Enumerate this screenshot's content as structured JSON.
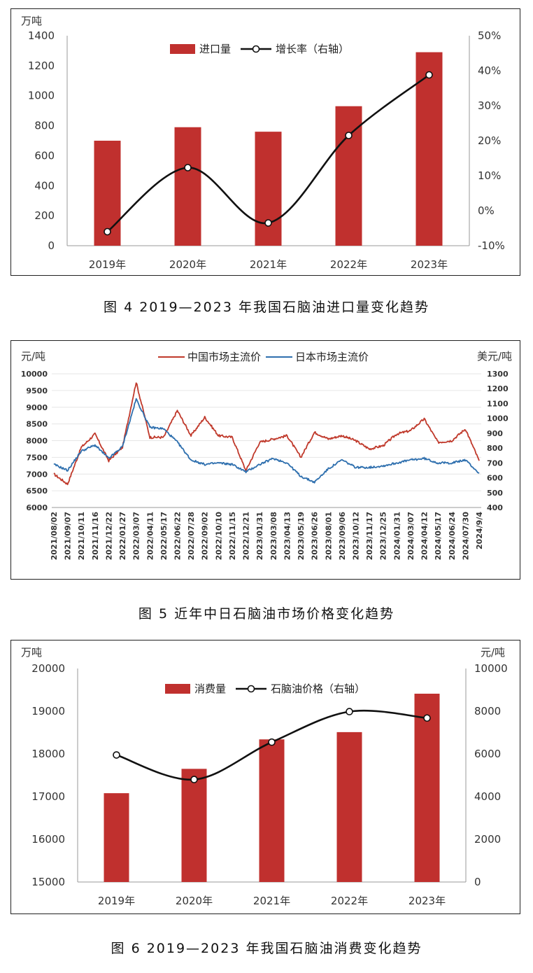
{
  "captions": [
    "图 4  2019—2023 年我国石脑油进口量变化趋势",
    "图 5  近年中日石脑油市场价格变化趋势",
    "图 6  2019—2023 年我国石脑油消费变化趋势"
  ],
  "colors": {
    "bar": "#c0302e",
    "line": "#111111",
    "china": "#c0392b",
    "japan": "#2e6fae",
    "grid": "#e6e6e6"
  },
  "chart_data": [
    {
      "type": "bar",
      "categories": [
        "2019年",
        "2020年",
        "2021年",
        "2022年",
        "2023年"
      ],
      "unit_left": "万吨",
      "ylim": [
        0,
        1400
      ],
      "yticks": [
        "0",
        "200",
        "400",
        "600",
        "800",
        "1000",
        "1200",
        "1400"
      ],
      "ylim_right": [
        -10,
        50
      ],
      "yticks_right": [
        "-10%",
        "0%",
        "10%",
        "20%",
        "30%",
        "40%",
        "50%"
      ],
      "series": [
        {
          "name": "进口量",
          "type": "bar",
          "values": [
            700,
            790,
            760,
            930,
            1290
          ]
        },
        {
          "name": "增长率（右轴）",
          "type": "line",
          "axis": "right",
          "values": [
            -6,
            12.3,
            -3.5,
            21.5,
            38.8
          ]
        }
      ],
      "legend_placement": "top"
    },
    {
      "type": "line",
      "unit_left": "元/吨",
      "unit_right": "美元/吨",
      "ylim": [
        6000,
        10000
      ],
      "yticks": [
        "6000",
        "6500",
        "7000",
        "7500",
        "8000",
        "8500",
        "9000",
        "9500",
        "10000"
      ],
      "ylim_right": [
        400,
        1300
      ],
      "yticks_right": [
        "400",
        "500",
        "600",
        "700",
        "800",
        "900",
        "1000",
        "1100",
        "1200",
        "1300"
      ],
      "x": [
        "2021/08/02",
        "2021/09/07",
        "2021/10/11",
        "2021/11/16",
        "2021/12/22",
        "2022/01/27",
        "2022/03/07",
        "2022/04/11",
        "2022/05/17",
        "2022/06/22",
        "2022/07/28",
        "2022/09/02",
        "2022/10/10",
        "2022/11/15",
        "2022/12/21",
        "2023/01/31",
        "2023/03/08",
        "2023/04/13",
        "2023/05/19",
        "2023/06/26",
        "2023/08/01",
        "2023/09/06",
        "2023/10/12",
        "2023/11/17",
        "2023/12/25",
        "2024/01/31",
        "2024/03/07",
        "2024/04/12",
        "2024/05/17",
        "2024/06/24",
        "2024/07/30",
        "2024/9/4"
      ],
      "series": [
        {
          "name": "中国市场主流价",
          "axis": "left",
          "values": [
            7000,
            6700,
            7800,
            8200,
            7400,
            7800,
            9750,
            8100,
            8100,
            8900,
            8150,
            8700,
            8150,
            8100,
            7100,
            7950,
            8050,
            8150,
            7500,
            8250,
            8050,
            8150,
            8000,
            7750,
            7850,
            8200,
            8300,
            8650,
            7950,
            8000,
            8350,
            7400
          ]
        },
        {
          "name": "日本市场主流价",
          "axis": "right",
          "values": [
            690,
            650,
            780,
            820,
            730,
            810,
            1130,
            940,
            930,
            840,
            720,
            690,
            700,
            690,
            640,
            690,
            730,
            700,
            610,
            570,
            660,
            720,
            670,
            670,
            680,
            700,
            720,
            730,
            700,
            700,
            720,
            630
          ]
        }
      ],
      "legend_placement": "top"
    },
    {
      "type": "bar",
      "categories": [
        "2019年",
        "2020年",
        "2021年",
        "2022年",
        "2023年"
      ],
      "unit_left": "万吨",
      "unit_right": "元/吨",
      "ylim": [
        15000,
        20000
      ],
      "yticks": [
        "15000",
        "16000",
        "17000",
        "18000",
        "19000",
        "20000"
      ],
      "ylim_right": [
        0,
        10000
      ],
      "yticks_right": [
        "0",
        "2000",
        "4000",
        "6000",
        "8000",
        "10000"
      ],
      "series": [
        {
          "name": "消费量",
          "type": "bar",
          "values": [
            17080,
            17650,
            18340,
            18510,
            19410
          ]
        },
        {
          "name": "石脑油价格（右轴）",
          "type": "line",
          "axis": "right",
          "values": [
            5950,
            4800,
            6550,
            7980,
            7680
          ]
        }
      ],
      "legend_placement": "top"
    }
  ]
}
